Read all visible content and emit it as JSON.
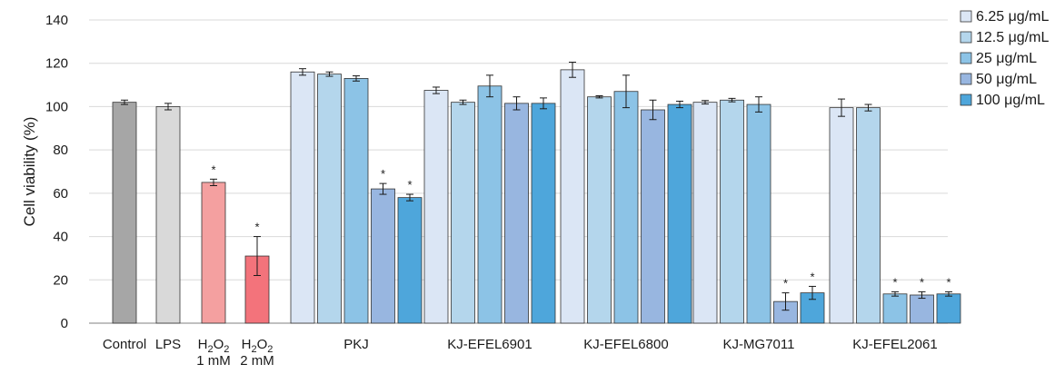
{
  "chart_data": {
    "type": "bar",
    "ylabel": "Cell viability (%)",
    "ylim": [
      0,
      140
    ],
    "yticks": [
      0,
      20,
      40,
      60,
      80,
      100,
      120,
      140
    ],
    "grid": true,
    "legend_position": "right",
    "legend": [
      {
        "name": "6.25 μg/mL",
        "color": "#dbe6f5"
      },
      {
        "name": "12.5 μg/mL",
        "color": "#b4d6ec"
      },
      {
        "name": "25 μg/mL",
        "color": "#8cc3e6"
      },
      {
        "name": "50 μg/mL",
        "color": "#98b6e0"
      },
      {
        "name": "100 μg/mL",
        "color": "#4ea6db"
      }
    ],
    "groups": [
      {
        "label": "Control",
        "bars": [
          {
            "value": 102,
            "error": 1,
            "color": "#a6a6a6",
            "sig": false
          }
        ]
      },
      {
        "label": "LPS",
        "bars": [
          {
            "value": 100,
            "error": 1.5,
            "color": "#d9d9d9",
            "sig": false
          }
        ]
      },
      {
        "label_main": "H",
        "label_sub": "2",
        "label_main2": "O",
        "label_sub2": "2",
        "label_line2": "1 mM",
        "bars": [
          {
            "value": 65,
            "error": 1.5,
            "color": "#f4a0a0",
            "sig": true
          }
        ]
      },
      {
        "label_main": "H",
        "label_sub": "2",
        "label_main2": "O",
        "label_sub2": "2",
        "label_line2": "2 mM",
        "bars": [
          {
            "value": 31,
            "error": 9,
            "color": "#f3737b",
            "sig": true
          }
        ]
      },
      {
        "label": "PKJ",
        "bars": [
          {
            "value": 116,
            "error": 1.5,
            "sig": false
          },
          {
            "value": 115,
            "error": 1,
            "sig": false
          },
          {
            "value": 113,
            "error": 1.2,
            "sig": false
          },
          {
            "value": 62,
            "error": 2.5,
            "sig": true
          },
          {
            "value": 58,
            "error": 1.5,
            "sig": true
          }
        ]
      },
      {
        "label": "KJ-EFEL6901",
        "bars": [
          {
            "value": 107.5,
            "error": 1.5,
            "sig": false
          },
          {
            "value": 102,
            "error": 1,
            "sig": false
          },
          {
            "value": 109.5,
            "error": 5,
            "sig": false
          },
          {
            "value": 101.5,
            "error": 3,
            "sig": false
          },
          {
            "value": 101.5,
            "error": 2.5,
            "sig": false
          }
        ]
      },
      {
        "label": "KJ-EFEL6800",
        "bars": [
          {
            "value": 117,
            "error": 3.5,
            "sig": false
          },
          {
            "value": 104.5,
            "error": 0.5,
            "sig": false
          },
          {
            "value": 107,
            "error": 7.5,
            "sig": false
          },
          {
            "value": 98.5,
            "error": 4.5,
            "sig": false
          },
          {
            "value": 101,
            "error": 1.5,
            "sig": false
          }
        ]
      },
      {
        "label": "KJ-MG7011",
        "bars": [
          {
            "value": 102,
            "error": 0.8,
            "sig": false
          },
          {
            "value": 103,
            "error": 0.8,
            "sig": false
          },
          {
            "value": 101,
            "error": 3.5,
            "sig": false
          },
          {
            "value": 10,
            "error": 4,
            "sig": true
          },
          {
            "value": 14,
            "error": 3,
            "sig": true
          }
        ]
      },
      {
        "label": "KJ-EFEL2061",
        "bars": [
          {
            "value": 99.5,
            "error": 4,
            "sig": false
          },
          {
            "value": 99.5,
            "error": 1.5,
            "sig": false
          },
          {
            "value": 13.5,
            "error": 1,
            "sig": true
          },
          {
            "value": 13,
            "error": 1.5,
            "sig": true
          },
          {
            "value": 13.5,
            "error": 1,
            "sig": true
          }
        ]
      }
    ],
    "significance_marker": "*"
  }
}
